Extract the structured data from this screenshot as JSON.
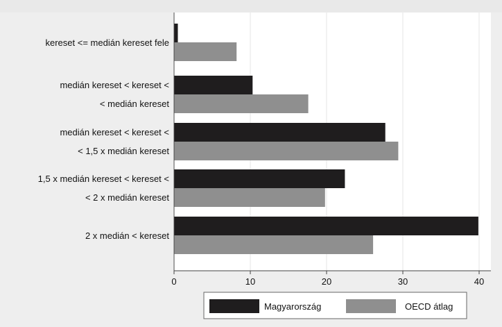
{
  "chart_data": {
    "type": "bar",
    "orientation": "horizontal",
    "title": "",
    "xlabel": "",
    "ylabel": "",
    "categories": [
      [
        "kereset <= medián kereset fele"
      ],
      [
        "medián kereset < kereset <",
        "< medián kereset"
      ],
      [
        "medián kereset < kereset <",
        "< 1,5 x medián kereset"
      ],
      [
        "1,5 x medián kereset < kereset <",
        "< 2 x medián kereset"
      ],
      [
        "2 x medián < kereset"
      ]
    ],
    "series": [
      {
        "name": "Magyarország",
        "color": "#1f1d1e",
        "values": [
          0.5,
          10.3,
          27.7,
          22.4,
          39.9
        ]
      },
      {
        "name": "OECD átlag",
        "color": "#8f8f8f",
        "values": [
          8.2,
          17.6,
          29.4,
          19.8,
          26.1
        ]
      }
    ],
    "xlim": [
      0,
      42
    ],
    "xticks": [
      0,
      10,
      20,
      30,
      40
    ],
    "grid": true,
    "legend_position": "bottom",
    "colors": {
      "page_background": "#eeeeee",
      "plot_background": "#ffffff",
      "gridline": "#e6e6e6",
      "axis": "#444444",
      "text": "#111111"
    }
  }
}
